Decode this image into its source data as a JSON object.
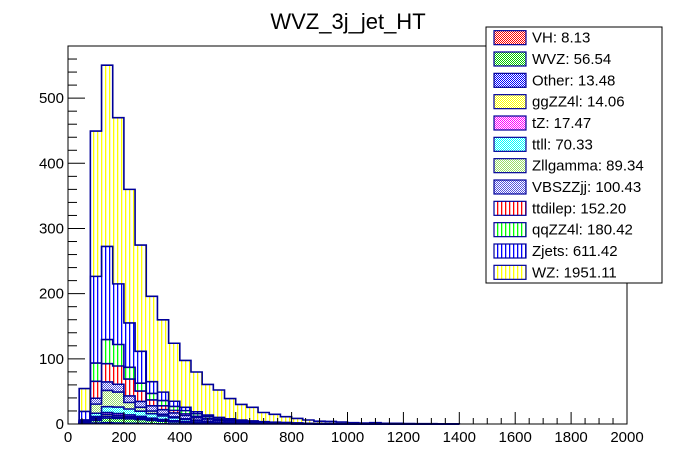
{
  "chart_data": {
    "type": "bar",
    "subtype": "stacked-histogram",
    "title": "WVZ_3j_jet_HT",
    "xlabel": "",
    "ylabel": "",
    "xlim": [
      0,
      2000
    ],
    "ylim": [
      0,
      580
    ],
    "bin_width": 40,
    "x_ticks": [
      0,
      200,
      400,
      600,
      800,
      1000,
      1200,
      1400,
      1600,
      1800,
      2000
    ],
    "y_ticks": [
      0,
      100,
      200,
      300,
      400,
      500
    ],
    "grid": false,
    "legend_position": "top-right",
    "bin_edges_start": [
      40,
      80,
      120,
      160,
      200,
      240,
      280,
      320,
      360,
      400,
      440,
      480,
      520,
      560,
      600,
      640,
      680,
      720,
      760,
      800,
      840,
      880,
      920,
      960,
      1000,
      1040,
      1080,
      1120,
      1160,
      1200,
      1240,
      1280,
      1320,
      1360
    ],
    "stack_order_bottom_to_top": [
      "VH",
      "WVZ",
      "Other",
      "ggZZ4l",
      "tZ",
      "ttll",
      "Zllgamma",
      "VBSZZjj",
      "ttdilep",
      "qqZZ4l",
      "Zjets",
      "WZ"
    ],
    "series": [
      {
        "name": "VH",
        "legend": "VH: 8.13",
        "color": "#ff0000",
        "fill": "checker",
        "values": [
          0.5,
          1.5,
          2,
          1.5,
          1,
          0.8,
          0.4,
          0.3,
          0.1,
          0.03,
          0,
          0,
          0,
          0,
          0,
          0,
          0,
          0,
          0,
          0,
          0,
          0,
          0,
          0,
          0,
          0,
          0,
          0,
          0,
          0,
          0,
          0,
          0,
          0
        ]
      },
      {
        "name": "WVZ",
        "legend": "WVZ: 56.54",
        "color": "#00cc00",
        "fill": "checker",
        "values": [
          0.5,
          4,
          7,
          7,
          7,
          6,
          5,
          4,
          3,
          2.5,
          2,
          1.6,
          1.3,
          1,
          0.9,
          0.7,
          0.6,
          0.5,
          0.4,
          0.3,
          0.2,
          0.15,
          0.1,
          0.1,
          0.05,
          0.05,
          0.04,
          0,
          0,
          0,
          0,
          0,
          0,
          0
        ]
      },
      {
        "name": "Other",
        "legend": "Other: 13.48",
        "color": "#0000ff",
        "fill": "checker",
        "values": [
          0.5,
          2,
          2.5,
          2,
          1.5,
          1.3,
          1,
          0.8,
          0.6,
          0.4,
          0.3,
          0.2,
          0.1,
          0.1,
          0.1,
          0.05,
          0.03,
          0,
          0,
          0,
          0,
          0,
          0,
          0,
          0,
          0,
          0,
          0,
          0,
          0,
          0,
          0,
          0,
          0
        ]
      },
      {
        "name": "ggZZ4l",
        "legend": "ggZZ4l: 14.06",
        "color": "#ffff00",
        "fill": "checker",
        "values": [
          0.3,
          2,
          3,
          2.5,
          2,
          1.5,
          1,
          0.7,
          0.4,
          0.3,
          0.2,
          0.1,
          0.06,
          0,
          0,
          0,
          0,
          0,
          0,
          0,
          0,
          0,
          0,
          0,
          0,
          0,
          0,
          0,
          0,
          0,
          0,
          0,
          0,
          0
        ]
      },
      {
        "name": "tZ",
        "legend": "tZ: 17.47",
        "color": "#ff00ff",
        "fill": "checker",
        "values": [
          0.2,
          2,
          3,
          3,
          2.5,
          2,
          1.5,
          1.1,
          0.8,
          0.5,
          0.3,
          0.2,
          0.1,
          0.1,
          0.07,
          0,
          0,
          0,
          0,
          0,
          0,
          0,
          0,
          0,
          0,
          0,
          0,
          0,
          0,
          0,
          0,
          0,
          0,
          0
        ]
      },
      {
        "name": "ttll",
        "legend": "ttll: 70.33",
        "color": "#00ffff",
        "fill": "checker",
        "values": [
          0.3,
          5,
          9,
          10,
          9,
          8,
          7,
          5.5,
          4.5,
          3.5,
          2.5,
          1.8,
          1.3,
          1,
          0.7,
          0.5,
          0.3,
          0.2,
          0.1,
          0.1,
          0.03,
          0,
          0,
          0,
          0,
          0,
          0,
          0,
          0,
          0,
          0,
          0,
          0,
          0
        ]
      },
      {
        "name": "Zllgamma",
        "legend": "Zllgamma: 89.34",
        "color": "#99dd66",
        "fill": "checker",
        "values": [
          1.5,
          14,
          25,
          23,
          10,
          6,
          4,
          2.5,
          1.5,
          0.8,
          0.5,
          0.3,
          0.2,
          0.04,
          0,
          0,
          0,
          0,
          0,
          0,
          0,
          0,
          0,
          0,
          0,
          0,
          0,
          0,
          0,
          0,
          0,
          0,
          0,
          0
        ]
      },
      {
        "name": "VBSZZjj",
        "legend": "VBSZZjj: 100.43",
        "color": "#5555dd",
        "fill": "checker",
        "values": [
          0.5,
          9,
          13,
          12,
          10,
          9,
          8,
          7,
          6,
          5,
          4,
          3.3,
          2.8,
          2.3,
          1.9,
          1.5,
          1.3,
          1,
          0.8,
          0.6,
          0.4,
          0.3,
          0.2,
          0.15,
          0.1,
          0.08,
          0.06,
          0.03,
          0.02,
          0.01,
          0,
          0,
          0,
          0
        ]
      },
      {
        "name": "ttdilep",
        "legend": "ttdilep: 152.20",
        "color": "#ff0000",
        "fill": "vlines",
        "values": [
          1,
          26,
          28,
          28,
          26,
          16,
          9,
          6,
          4,
          2.5,
          2,
          1.2,
          0.8,
          0.5,
          0.3,
          0.2,
          0.1,
          0.1,
          0,
          0,
          0,
          0,
          0,
          0,
          0,
          0,
          0,
          0,
          0,
          0,
          0,
          0,
          0,
          0
        ]
      },
      {
        "name": "qqZZ4l",
        "legend": "qqZZ4l: 180.42",
        "color": "#00ff00",
        "fill": "vlines",
        "values": [
          1,
          28,
          37,
          33,
          18,
          12,
          10,
          8,
          6,
          5,
          4,
          3,
          2.5,
          2,
          1.6,
          1.3,
          1,
          0.8,
          0.7,
          0.5,
          0.4,
          0.3,
          0.3,
          0.2,
          0.2,
          0.1,
          0.1,
          0.1,
          0.07,
          0.05,
          0.03,
          0.02,
          0.01,
          0.01
        ]
      },
      {
        "name": "Zjets",
        "legend": "Zjets: 611.42",
        "color": "#0000ff",
        "fill": "vlines",
        "values": [
          13,
          133,
          143,
          93,
          68,
          49,
          18,
          13,
          8,
          5,
          3,
          2,
          1,
          1,
          0.5,
          0.4,
          0.3,
          0.2,
          0.2,
          0.1,
          0.1,
          0,
          0,
          0,
          0,
          0,
          0,
          0,
          0,
          0,
          0,
          0,
          0,
          0
        ]
      },
      {
        "name": "WZ",
        "legend": "WZ: 1951.11",
        "color": "#ffff00",
        "fill": "vlines",
        "values": [
          35,
          223,
          278,
          255,
          205,
          163,
          131,
          111,
          89,
          72,
          61,
          47,
          42,
          31,
          24,
          21,
          14,
          12,
          9,
          7,
          5,
          3.5,
          3.4,
          2.5,
          1.6,
          1.2,
          1.8,
          1,
          0.9,
          0.6,
          0.5,
          0.4,
          0.3,
          0.2
        ]
      }
    ]
  }
}
